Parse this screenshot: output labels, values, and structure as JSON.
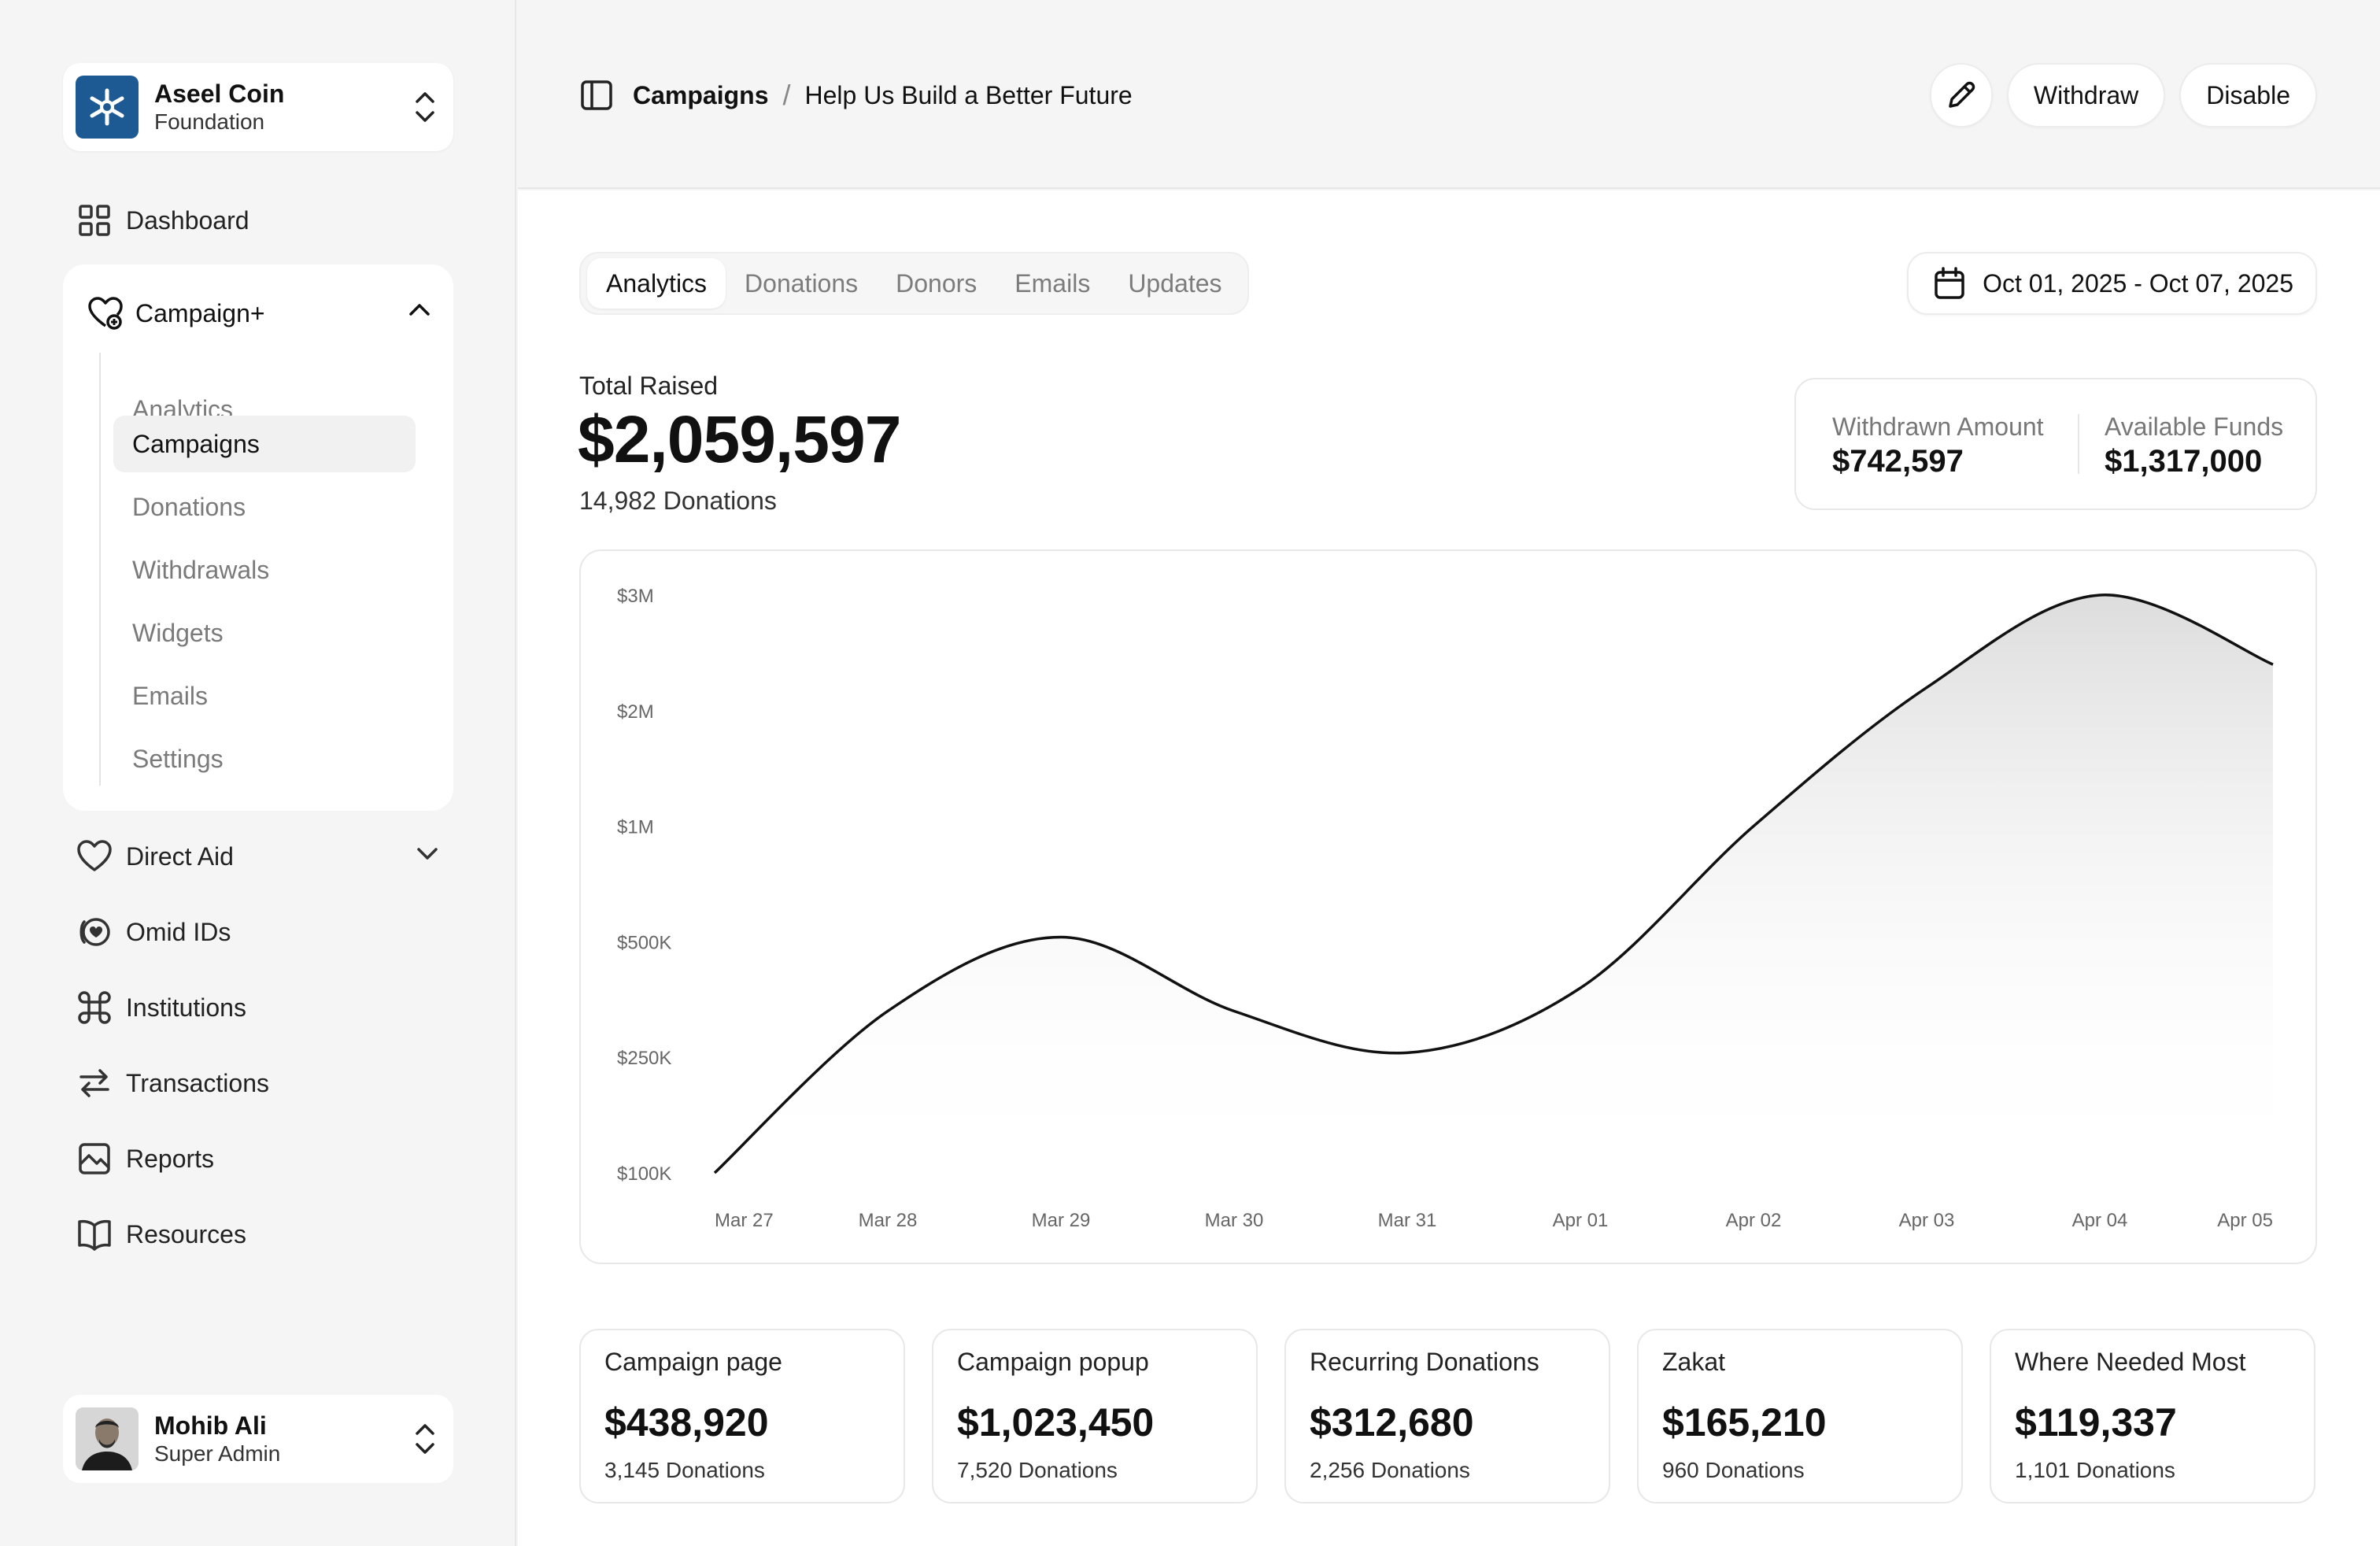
{
  "org": {
    "name": "Aseel Coin",
    "subtitle": "Foundation",
    "logo_color": "#1d5a94"
  },
  "nav": {
    "dashboard": "Dashboard",
    "campaign_group": {
      "label": "Campaign+",
      "items": [
        {
          "label": "Analytics"
        },
        {
          "label": "Campaigns"
        },
        {
          "label": "Donations"
        },
        {
          "label": "Withdrawals"
        },
        {
          "label": "Widgets"
        },
        {
          "label": "Emails"
        },
        {
          "label": "Settings"
        }
      ],
      "active_index": 1
    },
    "direct_aid": "Direct Aid",
    "omid_ids": "Omid IDs",
    "institutions": "Institutions",
    "transactions": "Transactions",
    "reports": "Reports",
    "resources": "Resources"
  },
  "user": {
    "name": "Mohib Ali",
    "role": "Super Admin"
  },
  "breadcrumb": {
    "parent": "Campaigns",
    "separator": "/",
    "current": "Help Us Build a Better Future"
  },
  "actions": {
    "edit_icon": "pencil-icon",
    "withdraw": "Withdraw",
    "disable": "Disable"
  },
  "tabs": [
    {
      "label": "Analytics"
    },
    {
      "label": "Donations"
    },
    {
      "label": "Donors"
    },
    {
      "label": "Emails"
    },
    {
      "label": "Updates"
    }
  ],
  "active_tab": "Analytics",
  "date_range": "Oct 01, 2025 - Oct 07, 2025",
  "summary": {
    "total_label": "Total Raised",
    "total_value": "$2,059,597",
    "total_count": "14,982 Donations",
    "withdrawn_label": "Withdrawn Amount",
    "withdrawn_value": "$742,597",
    "available_label": "Available Funds",
    "available_value": "$1,317,000"
  },
  "chart_data": {
    "type": "area",
    "y_ticks": [
      "$3M",
      "$2M",
      "$1M",
      "$500K",
      "$250K",
      "$100K"
    ],
    "y_tick_values": [
      3000000,
      2000000,
      1000000,
      500000,
      250000,
      100000
    ],
    "x": [
      "Mar 27",
      "Mar 28",
      "Mar 29",
      "Mar 30",
      "Mar 31",
      "Apr 01",
      "Apr 02",
      "Apr 03",
      "Apr 04",
      "Apr 05"
    ],
    "values": [
      100000,
      350000,
      520000,
      350000,
      260000,
      400000,
      1000000,
      2200000,
      3000000,
      2400000
    ],
    "grid": false,
    "legend": "none",
    "line_color": "#111111"
  },
  "stats": [
    {
      "label": "Campaign page",
      "value": "$438,920",
      "count": "3,145 Donations"
    },
    {
      "label": "Campaign popup",
      "value": "$1,023,450",
      "count": "7,520 Donations"
    },
    {
      "label": "Recurring Donations",
      "value": "$312,680",
      "count": "2,256 Donations"
    },
    {
      "label": "Zakat",
      "value": "$165,210",
      "count": "960 Donations"
    },
    {
      "label": "Where Needed Most",
      "value": "$119,337",
      "count": "1,101 Donations"
    }
  ]
}
